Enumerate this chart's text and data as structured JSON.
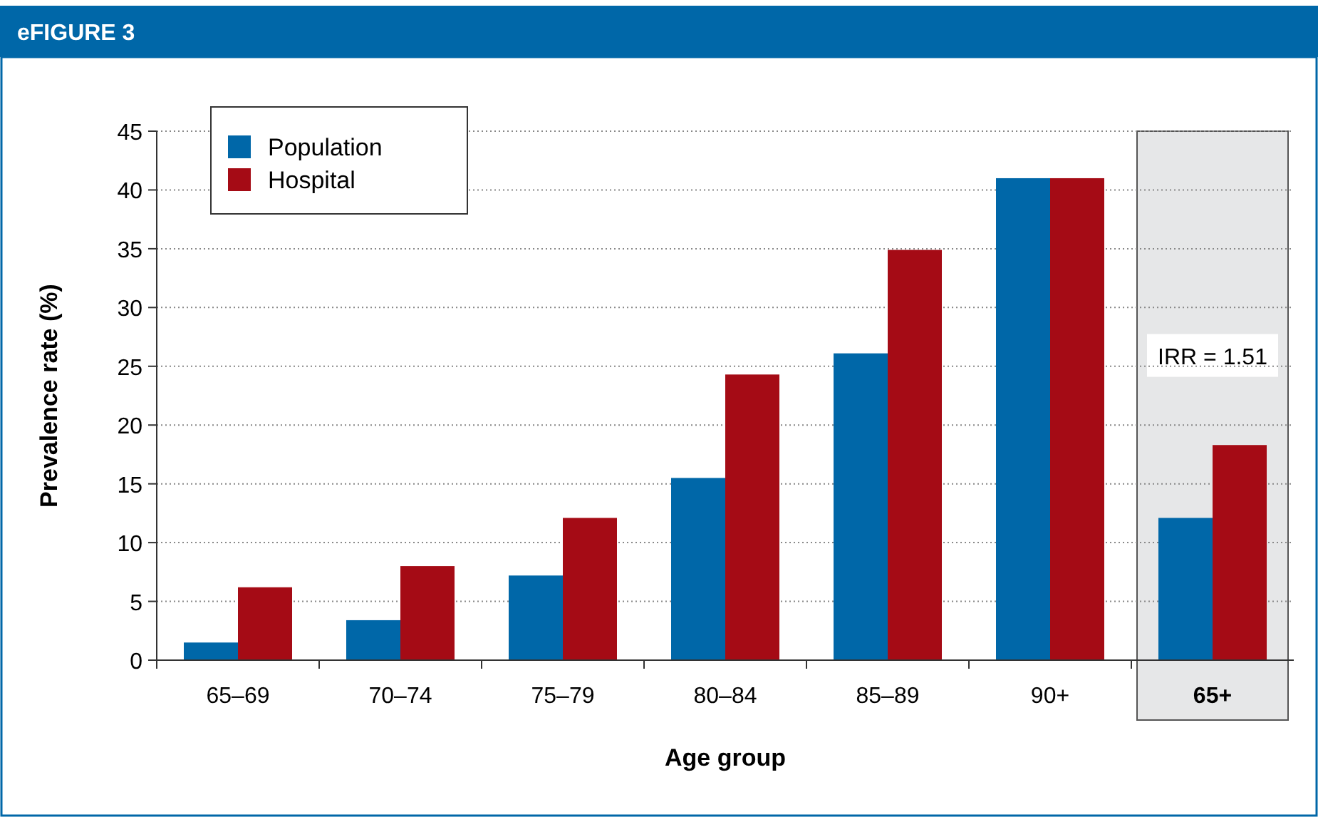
{
  "chart_data": {
    "type": "bar",
    "title": "eFIGURE 3",
    "xlabel": "Age group",
    "ylabel": "Prevalence rate (%)",
    "categories": [
      "65–69",
      "70–74",
      "75–79",
      "80–84",
      "85–89",
      "90+",
      "65+"
    ],
    "series": [
      {
        "name": "Population",
        "color": "#0067a8",
        "values": [
          1.5,
          3.4,
          7.2,
          15.5,
          26.1,
          41,
          12.1
        ]
      },
      {
        "name": "Hospital",
        "color": "#a50b15",
        "values": [
          6.2,
          8.0,
          12.1,
          24.3,
          34.9,
          41,
          18.3
        ]
      }
    ],
    "ylim": [
      0,
      45
    ],
    "yticks": [
      0,
      5,
      10,
      15,
      20,
      25,
      30,
      35,
      40,
      45
    ],
    "grid": "y",
    "legend": "top left",
    "bands": [
      {
        "axis": "x",
        "from": "65+",
        "to": "65+",
        "label": "IRR = 1.51",
        "color": "#e6e7e8"
      }
    ]
  }
}
